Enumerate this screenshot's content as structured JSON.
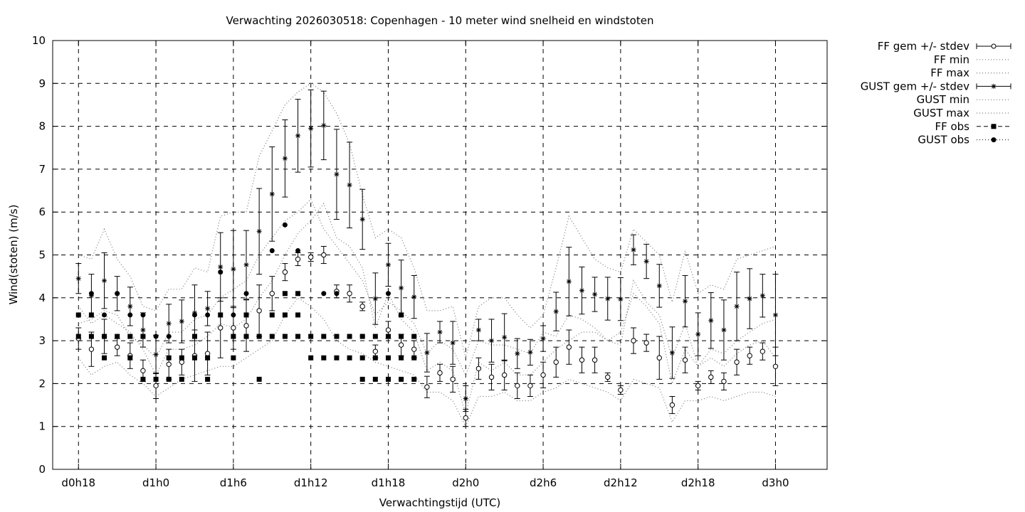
{
  "chart_data": {
    "type": "scatter",
    "title": "Verwachting 2026030518: Copenhagen - 10 meter wind snelheid en windstoten",
    "xlabel": "Verwachtingstijd (UTC)",
    "ylabel": "Wind(stoten) (m/s)",
    "xlim": [
      16,
      76
    ],
    "ylim": [
      0,
      10
    ],
    "x_ticks": [
      {
        "x": 18,
        "label": "d0h18"
      },
      {
        "x": 24,
        "label": "d1h0"
      },
      {
        "x": 30,
        "label": "d1h6"
      },
      {
        "x": 36,
        "label": "d1h12"
      },
      {
        "x": 42,
        "label": "d1h18"
      },
      {
        "x": 48,
        "label": "d2h0"
      },
      {
        "x": 54,
        "label": "d2h6"
      },
      {
        "x": 60,
        "label": "d2h12"
      },
      {
        "x": 66,
        "label": "d2h18"
      },
      {
        "x": 72,
        "label": "d3h0"
      }
    ],
    "y_ticks": [
      "0",
      "1",
      "2",
      "3",
      "4",
      "5",
      "6",
      "7",
      "8",
      "9",
      "10"
    ],
    "grid": true,
    "legend_position": "outside-right",
    "legend": [
      "FF gem +/- stdev",
      "FF min",
      "FF max",
      "GUST gem +/- stdev",
      "GUST min",
      "GUST max",
      "FF obs",
      "GUST obs"
    ],
    "x": [
      18,
      19,
      20,
      21,
      22,
      23,
      24,
      25,
      26,
      27,
      28,
      29,
      30,
      31,
      32,
      33,
      34,
      35,
      36,
      37,
      38,
      39,
      40,
      41,
      42,
      43,
      44,
      45,
      46,
      47,
      48,
      49,
      50,
      51,
      52,
      53,
      54,
      55,
      56,
      57,
      58,
      59,
      60,
      61,
      62,
      63,
      64,
      65,
      66,
      67,
      68,
      69,
      70,
      71,
      72
    ],
    "series": [
      {
        "name": "FF gem +/- stdev",
        "mean": [
          3.05,
          2.8,
          3.1,
          2.85,
          2.65,
          2.3,
          1.95,
          2.45,
          2.5,
          2.65,
          2.7,
          3.3,
          3.3,
          3.35,
          3.7,
          4.1,
          4.6,
          4.9,
          4.95,
          5.0,
          4.15,
          4.1,
          3.8,
          2.75,
          3.25,
          2.9,
          2.8,
          1.92,
          2.25,
          2.1,
          1.2,
          2.35,
          2.15,
          2.2,
          1.95,
          1.95,
          2.2,
          2.5,
          2.85,
          2.55,
          2.55,
          2.15,
          1.85,
          3.0,
          2.95,
          2.6,
          1.5,
          2.55,
          1.95,
          2.15,
          2.05,
          2.5,
          2.65,
          2.75,
          2.4
        ],
        "stdev": [
          0.25,
          0.4,
          0.4,
          0.2,
          0.3,
          0.25,
          0.3,
          0.35,
          0.3,
          0.6,
          0.5,
          0.7,
          0.5,
          0.6,
          0.6,
          0.4,
          0.2,
          0.15,
          0.1,
          0.2,
          0.15,
          0.2,
          0.1,
          0.15,
          0.2,
          0.25,
          0.2,
          0.25,
          0.2,
          0.3,
          0.2,
          0.25,
          0.3,
          0.35,
          0.3,
          0.25,
          0.3,
          0.35,
          0.4,
          0.3,
          0.3,
          0.1,
          0.1,
          0.3,
          0.2,
          0.5,
          0.2,
          0.3,
          0.1,
          0.15,
          0.2,
          0.3,
          0.2,
          0.2,
          0.45
        ],
        "color": "#000000"
      },
      {
        "name": "FF min",
        "values": [
          2.6,
          2.2,
          2.4,
          2.5,
          2.2,
          2.0,
          1.7,
          1.9,
          2.1,
          2.2,
          2.3,
          2.4,
          2.4,
          2.6,
          2.8,
          3.0,
          3.6,
          4.0,
          3.8,
          3.5,
          3.0,
          2.8,
          2.7,
          2.5,
          2.4,
          2.3,
          2.2,
          1.8,
          1.8,
          1.6,
          1.0,
          1.7,
          1.7,
          1.8,
          1.6,
          1.6,
          1.8,
          1.9,
          2.1,
          2.0,
          1.9,
          1.8,
          1.6,
          2.1,
          2.0,
          1.9,
          1.1,
          1.6,
          1.6,
          1.7,
          1.6,
          1.7,
          1.8,
          1.8,
          1.7
        ],
        "color": "#000000"
      },
      {
        "name": "FF max",
        "values": [
          3.4,
          3.5,
          3.7,
          3.6,
          3.1,
          2.9,
          2.6,
          3.2,
          3.2,
          3.5,
          3.6,
          4.0,
          4.2,
          4.4,
          5.0,
          5.4,
          5.8,
          6.0,
          6.3,
          5.6,
          5.2,
          4.8,
          4.4,
          3.6,
          3.9,
          3.7,
          3.4,
          2.7,
          3.0,
          2.8,
          2.2,
          3.0,
          2.9,
          2.9,
          2.8,
          2.7,
          3.2,
          3.1,
          3.6,
          3.5,
          3.3,
          3.0,
          2.9,
          4.4,
          3.9,
          3.6,
          2.6,
          3.4,
          2.4,
          2.8,
          2.7,
          3.0,
          3.2,
          3.4,
          3.5
        ],
        "color": "#000000"
      },
      {
        "name": "GUST gem +/- stdev",
        "mean": [
          4.45,
          4.05,
          4.4,
          4.1,
          3.8,
          3.25,
          2.68,
          3.4,
          3.45,
          3.65,
          3.75,
          4.72,
          4.67,
          4.77,
          5.55,
          6.42,
          7.25,
          7.78,
          7.95,
          8.02,
          6.88,
          6.63,
          5.83,
          3.98,
          4.77,
          4.23,
          4.02,
          2.72,
          3.2,
          2.95,
          1.65,
          3.25,
          3.0,
          3.08,
          2.7,
          2.73,
          3.05,
          3.68,
          4.38,
          4.17,
          4.08,
          3.98,
          3.97,
          5.12,
          4.85,
          4.28,
          2.72,
          3.92,
          3.15,
          3.47,
          3.25,
          3.8,
          3.98,
          4.05,
          3.6
        ],
        "stdev": [
          0.35,
          0.5,
          0.65,
          0.4,
          0.45,
          0.4,
          0.45,
          0.45,
          0.5,
          0.65,
          0.4,
          0.8,
          0.9,
          0.8,
          1.0,
          1.1,
          0.9,
          0.85,
          0.9,
          0.8,
          1.05,
          1.0,
          0.7,
          0.6,
          0.5,
          0.65,
          0.5,
          0.45,
          0.25,
          0.5,
          0.3,
          0.25,
          0.5,
          0.55,
          0.35,
          0.3,
          0.3,
          0.45,
          0.8,
          0.55,
          0.4,
          0.5,
          0.5,
          0.35,
          0.4,
          0.5,
          0.6,
          0.6,
          0.5,
          0.65,
          0.7,
          0.8,
          0.7,
          0.5,
          0.95
        ],
        "color": "#000000"
      },
      {
        "name": "GUST min",
        "values": [
          3.8,
          3.4,
          3.6,
          3.4,
          3.2,
          2.8,
          2.2,
          2.8,
          2.8,
          2.9,
          3.1,
          3.4,
          3.3,
          3.5,
          4.0,
          4.4,
          5.0,
          5.5,
          5.8,
          6.2,
          5.4,
          5.2,
          4.7,
          3.3,
          4.1,
          3.5,
          3.2,
          2.3,
          2.5,
          2.3,
          1.3,
          2.5,
          2.3,
          2.5,
          2.2,
          2.2,
          2.5,
          2.8,
          3.0,
          3.2,
          3.2,
          3.0,
          3.2,
          4.1,
          3.8,
          3.4,
          2.0,
          2.8,
          2.4,
          2.6,
          2.4,
          2.7,
          2.9,
          3.0,
          2.6
        ],
        "color": "#000000"
      },
      {
        "name": "GUST max",
        "values": [
          5.0,
          4.9,
          5.6,
          4.9,
          4.5,
          3.8,
          3.7,
          4.2,
          4.2,
          4.7,
          4.6,
          5.9,
          6.0,
          6.0,
          7.3,
          7.9,
          8.5,
          8.8,
          9.0,
          8.8,
          8.3,
          7.6,
          6.4,
          5.4,
          5.6,
          5.4,
          4.7,
          3.7,
          3.7,
          3.8,
          2.6,
          3.8,
          4.0,
          4.0,
          3.6,
          3.3,
          3.6,
          4.7,
          5.9,
          5.4,
          4.9,
          4.7,
          4.6,
          5.6,
          5.3,
          5.0,
          3.9,
          5.1,
          4.1,
          4.3,
          4.2,
          4.9,
          5.0,
          5.1,
          5.2
        ],
        "color": "#000000"
      },
      {
        "name": "FF obs",
        "points": [
          [
            18,
            3.1
          ],
          [
            18,
            3.6
          ],
          [
            19,
            3.1
          ],
          [
            19,
            3.6
          ],
          [
            20,
            3.1
          ],
          [
            20,
            2.6
          ],
          [
            21,
            3.1
          ],
          [
            22,
            3.1
          ],
          [
            22,
            2.6
          ],
          [
            23,
            3.1
          ],
          [
            23,
            2.1
          ],
          [
            24,
            2.1
          ],
          [
            25,
            2.6
          ],
          [
            25,
            2.1
          ],
          [
            26,
            2.6
          ],
          [
            26,
            2.1
          ],
          [
            27,
            3.1
          ],
          [
            27,
            2.6
          ],
          [
            28,
            2.6
          ],
          [
            28,
            2.1
          ],
          [
            29,
            3.6
          ],
          [
            30,
            3.1
          ],
          [
            30,
            2.6
          ],
          [
            31,
            3.6
          ],
          [
            31,
            3.1
          ],
          [
            32,
            3.1
          ],
          [
            32,
            2.1
          ],
          [
            33,
            3.6
          ],
          [
            33,
            3.1
          ],
          [
            34,
            4.1
          ],
          [
            34,
            3.6
          ],
          [
            34,
            3.1
          ],
          [
            35,
            4.1
          ],
          [
            35,
            3.6
          ],
          [
            35,
            3.1
          ],
          [
            36,
            3.1
          ],
          [
            36,
            2.6
          ],
          [
            37,
            3.1
          ],
          [
            37,
            2.6
          ],
          [
            38,
            3.1
          ],
          [
            38,
            2.6
          ],
          [
            39,
            3.1
          ],
          [
            39,
            2.6
          ],
          [
            40,
            3.1
          ],
          [
            40,
            2.6
          ],
          [
            40,
            2.1
          ],
          [
            41,
            3.1
          ],
          [
            41,
            2.6
          ],
          [
            41,
            2.1
          ],
          [
            42,
            3.1
          ],
          [
            42,
            2.6
          ],
          [
            42,
            2.1
          ],
          [
            43,
            3.6
          ],
          [
            43,
            3.1
          ],
          [
            43,
            2.6
          ],
          [
            43,
            2.1
          ],
          [
            44,
            3.1
          ],
          [
            44,
            2.6
          ],
          [
            44,
            2.1
          ]
        ],
        "color": "#000000"
      },
      {
        "name": "GUST obs",
        "points": [
          [
            18,
            3.6
          ],
          [
            19,
            4.1
          ],
          [
            20,
            3.6
          ],
          [
            21,
            4.1
          ],
          [
            22,
            3.6
          ],
          [
            23,
            3.6
          ],
          [
            24,
            3.1
          ],
          [
            25,
            3.1
          ],
          [
            27,
            3.6
          ],
          [
            28,
            3.6
          ],
          [
            29,
            4.6
          ],
          [
            30,
            3.6
          ],
          [
            31,
            4.1
          ],
          [
            33,
            5.1
          ],
          [
            34,
            5.7
          ],
          [
            35,
            5.1
          ],
          [
            37,
            4.1
          ],
          [
            38,
            4.1
          ],
          [
            40,
            3.1
          ],
          [
            42,
            4.1
          ],
          [
            43,
            3.6
          ],
          [
            44,
            3.1
          ]
        ],
        "color": "#000000"
      }
    ]
  }
}
